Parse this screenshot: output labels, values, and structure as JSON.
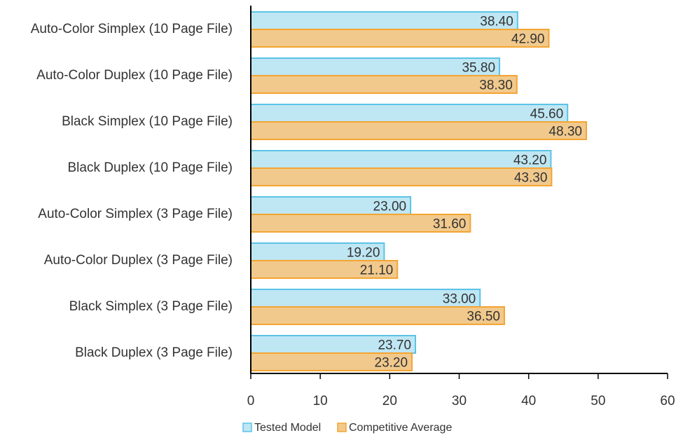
{
  "chart_data": {
    "type": "bar",
    "orientation": "horizontal",
    "categories": [
      "Auto-Color Simplex (10 Page File)",
      "Auto-Color Duplex (10 Page File)",
      "Black Simplex  (10 Page File)",
      "Black Duplex  (10 Page File)",
      "Auto-Color Simplex (3 Page File)",
      "Auto-Color Duplex (3 Page File)",
      "Black Simplex  (3 Page File)",
      "Black Duplex  (3 Page File)"
    ],
    "series": [
      {
        "name": "Tested Model",
        "values": [
          38.4,
          35.8,
          45.6,
          43.2,
          23.0,
          19.2,
          33.0,
          23.7
        ],
        "labels": [
          "38.40",
          "35.80",
          "45.60",
          "43.20",
          "23.00",
          "19.20",
          "33.00",
          "23.70"
        ],
        "fill": "#bfe6f3",
        "stroke": "#5bc3e6"
      },
      {
        "name": "Competitive Average",
        "values": [
          42.9,
          38.3,
          48.3,
          43.3,
          31.6,
          21.1,
          36.5,
          23.2
        ],
        "labels": [
          "42.90",
          "38.30",
          "48.30",
          "43.30",
          "31.60",
          "21.10",
          "36.50",
          "23.20"
        ],
        "fill": "#f1c98c",
        "stroke": "#f4a533"
      }
    ],
    "xlim": [
      0,
      60
    ],
    "xticks": [
      "0",
      "10",
      "20",
      "30",
      "40",
      "50",
      "60"
    ],
    "title": "",
    "xlabel": "",
    "ylabel": "",
    "grid": false,
    "legend_position": "bottom"
  }
}
